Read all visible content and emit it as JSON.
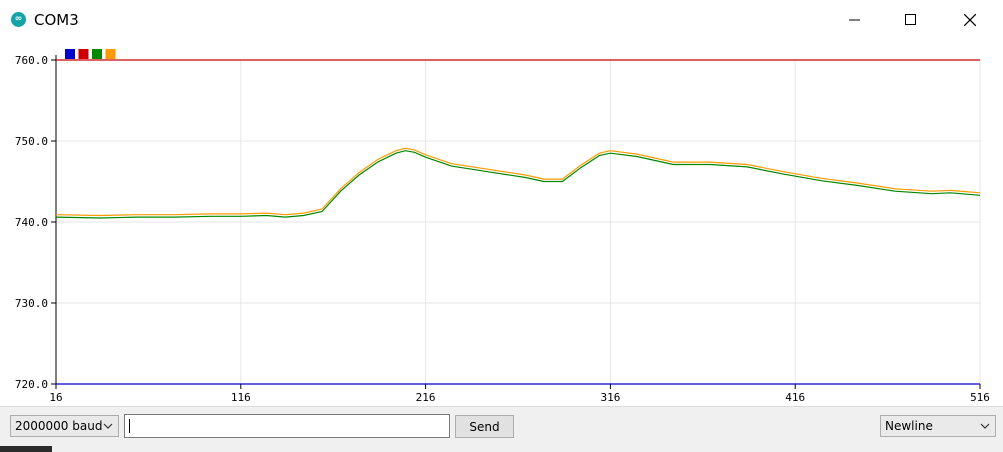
{
  "window": {
    "title": "COM3",
    "icon": "arduino-infinity-icon",
    "icon_glyph": "∞"
  },
  "toolbar": {
    "baud_label": "2000000 baud",
    "send_label": "Send",
    "input_value": "",
    "line_ending_label": "Newline"
  },
  "chart_data": {
    "type": "line",
    "xlim": [
      16,
      516
    ],
    "ylim": [
      720,
      760
    ],
    "x_ticks": [
      16,
      116,
      216,
      316,
      416,
      516
    ],
    "x_tick_labels": [
      "16",
      "116",
      "216",
      "316",
      "416",
      "516"
    ],
    "y_ticks": [
      760,
      750,
      740,
      730,
      720
    ],
    "y_tick_labels": [
      "760.0",
      "750.0",
      "740.0",
      "730.0",
      "720.0"
    ],
    "grid": true,
    "legend": "top-left",
    "series": [
      {
        "color": "#0000cc",
        "x": [
          16,
          516
        ],
        "values": [
          720,
          720
        ]
      },
      {
        "color": "#cc0000",
        "x": [
          16,
          516
        ],
        "values": [
          760,
          760
        ]
      },
      {
        "color": "#008800",
        "x": [
          16,
          40,
          60,
          80,
          100,
          116,
          130,
          140,
          150,
          160,
          170,
          180,
          190,
          200,
          205,
          210,
          216,
          230,
          250,
          270,
          280,
          290,
          300,
          310,
          316,
          330,
          350,
          370,
          390,
          410,
          430,
          450,
          470,
          490,
          500,
          516
        ],
        "values": [
          740.6,
          740.5,
          740.6,
          740.6,
          740.7,
          740.7,
          740.8,
          740.6,
          740.8,
          741.3,
          743.8,
          745.8,
          747.4,
          748.5,
          748.8,
          748.6,
          748.0,
          746.9,
          746.2,
          745.5,
          745.0,
          745.0,
          746.7,
          748.2,
          748.5,
          748.1,
          747.1,
          747.1,
          746.8,
          745.9,
          745.1,
          744.5,
          743.8,
          743.5,
          743.6,
          743.3
        ]
      },
      {
        "color": "#ff9900",
        "x": [
          16,
          40,
          60,
          80,
          100,
          116,
          130,
          140,
          150,
          160,
          170,
          180,
          190,
          200,
          205,
          210,
          216,
          230,
          250,
          270,
          280,
          290,
          300,
          310,
          316,
          330,
          350,
          370,
          390,
          410,
          430,
          450,
          470,
          490,
          500,
          516
        ],
        "values": [
          740.9,
          740.8,
          740.9,
          740.9,
          741.0,
          741.0,
          741.1,
          740.9,
          741.1,
          741.6,
          744.1,
          746.1,
          747.7,
          748.8,
          749.1,
          748.9,
          748.3,
          747.2,
          746.5,
          745.8,
          745.3,
          745.3,
          747.0,
          748.5,
          748.8,
          748.4,
          747.4,
          747.4,
          747.1,
          746.2,
          745.4,
          744.8,
          744.1,
          743.8,
          743.9,
          743.6
        ]
      }
    ]
  }
}
